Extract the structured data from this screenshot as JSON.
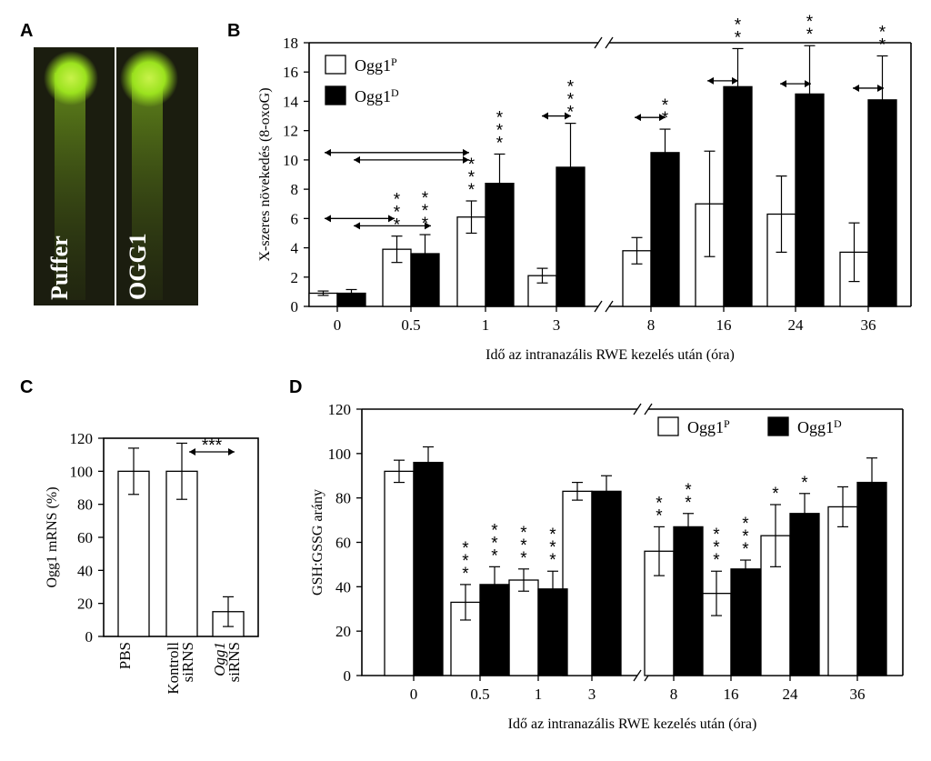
{
  "panels": {
    "a": "A",
    "b": "B",
    "c": "C",
    "d": "D"
  },
  "gel": {
    "lanes": [
      "Puffer",
      "OGG1"
    ],
    "glow_color": "#9be21e",
    "bg_color": "#1b1d0f"
  },
  "colors": {
    "open_bar": "#ffffff",
    "filled_bar": "#000000"
  },
  "chart_data": [
    {
      "id": "B",
      "type": "bar",
      "ylabel": "X-szeres növekedés (8-oxoG)",
      "xlabel": "Idő az intranazális RWE kezelés után (óra)",
      "ylim": [
        0,
        18
      ],
      "yticks": [
        0,
        2,
        4,
        6,
        8,
        10,
        12,
        14,
        16,
        18
      ],
      "categories": [
        "0",
        "0.5",
        "1",
        "3",
        "8",
        "16",
        "24",
        "36"
      ],
      "axis_break_after_category": "3",
      "legend": {
        "position": "top-left"
      },
      "series": [
        {
          "name": "Ogg1",
          "sup": "P",
          "fill": "open",
          "values": [
            0.9,
            3.9,
            6.1,
            2.1,
            3.8,
            7.0,
            6.3,
            3.7
          ],
          "errors": [
            0.15,
            0.9,
            1.1,
            0.5,
            0.9,
            3.6,
            2.6,
            2.0
          ]
        },
        {
          "name": "Ogg1",
          "sup": "D",
          "fill": "filled",
          "values": [
            0.9,
            3.6,
            8.4,
            9.5,
            10.5,
            15.0,
            14.5,
            14.1
          ],
          "errors": [
            0.25,
            1.3,
            2.0,
            3.0,
            1.6,
            2.6,
            3.3,
            3.0
          ]
        }
      ],
      "significance": [
        {
          "category": "0.5",
          "series": 0,
          "label": "***"
        },
        {
          "category": "0.5",
          "series": 1,
          "label": "***"
        },
        {
          "category": "1",
          "series": 0,
          "label": "***"
        },
        {
          "category": "1",
          "series": 1,
          "label": "***"
        },
        {
          "category": "3",
          "series": 1,
          "label": "***"
        },
        {
          "category": "8",
          "series": 1,
          "label": "**"
        },
        {
          "category": "16",
          "series": 1,
          "label": "**"
        },
        {
          "category": "24",
          "series": 1,
          "label": "**"
        },
        {
          "category": "36",
          "series": 1,
          "label": "**"
        }
      ]
    },
    {
      "id": "C",
      "type": "bar",
      "ylabel": "Ogg1  mRNS  (%)",
      "ylim": [
        0,
        120
      ],
      "yticks": [
        0,
        20,
        40,
        60,
        80,
        100,
        120
      ],
      "categories": [
        {
          "lines": [
            "PBS"
          ]
        },
        {
          "lines": [
            "Kontroll",
            "siRNS"
          ]
        },
        {
          "lines": [
            "Ogg1",
            "siRNS"
          ],
          "italic_first": true
        }
      ],
      "values": [
        100,
        100,
        15
      ],
      "errors": [
        14,
        17,
        9
      ],
      "significance": [
        {
          "from": 1,
          "to": 2,
          "label": "***"
        }
      ]
    },
    {
      "id": "D",
      "type": "bar",
      "ylabel": "GSH:GSSG arány",
      "xlabel": "Idő az intranazális RWE kezelés után (óra)",
      "ylim": [
        0,
        120
      ],
      "yticks": [
        0,
        20,
        40,
        60,
        80,
        100,
        120
      ],
      "categories": [
        "0",
        "0.5",
        "1",
        "3",
        "8",
        "16",
        "24",
        "36"
      ],
      "axis_break_after_category": "3",
      "legend": {
        "position": "top-right"
      },
      "series": [
        {
          "name": "Ogg1",
          "sup": "P",
          "fill": "open",
          "values": [
            92,
            33,
            43,
            83,
            56,
            37,
            63,
            76
          ],
          "errors": [
            5,
            8,
            5,
            4,
            11,
            10,
            14,
            9
          ]
        },
        {
          "name": "Ogg1",
          "sup": "D",
          "fill": "filled",
          "values": [
            96,
            41,
            39,
            83,
            67,
            48,
            73,
            87
          ],
          "errors": [
            7,
            8,
            8,
            7,
            6,
            4,
            9,
            11
          ]
        }
      ],
      "significance": [
        {
          "category": "0.5",
          "series": 0,
          "label": "***"
        },
        {
          "category": "0.5",
          "series": 1,
          "label": "***"
        },
        {
          "category": "1",
          "series": 0,
          "label": "***"
        },
        {
          "category": "1",
          "series": 1,
          "label": "***"
        },
        {
          "category": "8",
          "series": 0,
          "label": "**"
        },
        {
          "category": "8",
          "series": 1,
          "label": "**"
        },
        {
          "category": "16",
          "series": 0,
          "label": "***"
        },
        {
          "category": "16",
          "series": 1,
          "label": "***"
        },
        {
          "category": "24",
          "series": 0,
          "label": "*"
        },
        {
          "category": "24",
          "series": 1,
          "label": "*"
        }
      ]
    }
  ]
}
